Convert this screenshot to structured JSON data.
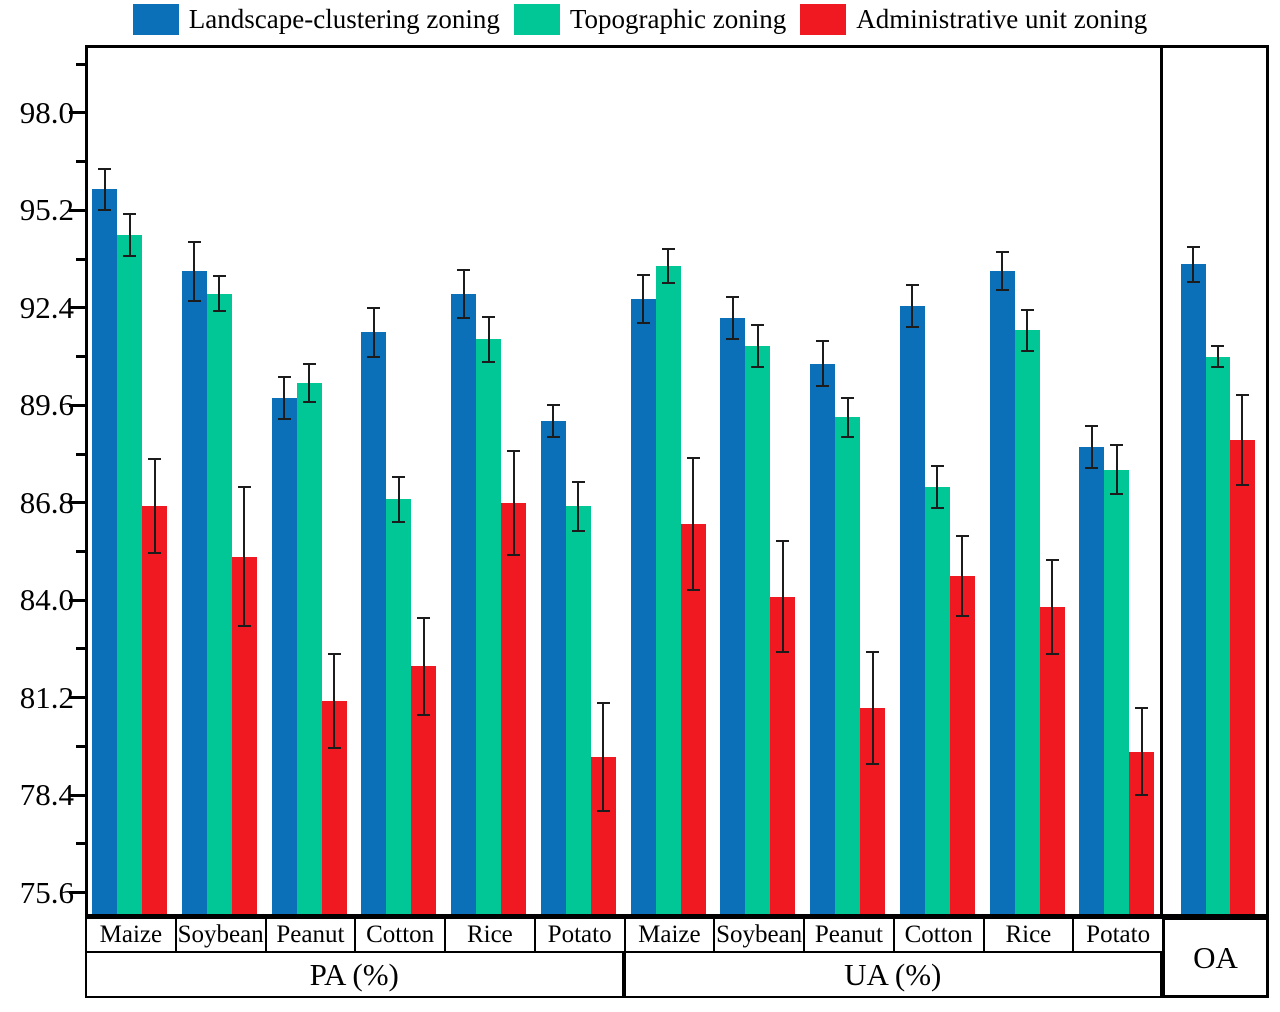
{
  "legend": {
    "items": [
      "Landscape-clustering zoning",
      "Topographic zoning",
      "Administrative unit zoning"
    ]
  },
  "chart_data": {
    "type": "bar",
    "title": "",
    "xlabel": "",
    "ylabel": "",
    "grid": false,
    "legend_position": "top",
    "y_axis": {
      "min": 74.9,
      "max": 99.95,
      "major_ticks": [
        98.0,
        95.2,
        92.4,
        89.6,
        86.8,
        84.0,
        81.2,
        78.4,
        75.6
      ],
      "minor_ticks": [
        99.4,
        96.6,
        93.8,
        91.0,
        88.2,
        85.4,
        82.6,
        79.8,
        77.0
      ]
    },
    "sections": [
      {
        "label": "PA (%)",
        "categories": [
          "Maize",
          "Soybean",
          "Peanut",
          "Cotton",
          "Rice",
          "Potato"
        ]
      },
      {
        "label": "UA (%)",
        "categories": [
          "Maize",
          "Soybean",
          "Peanut",
          "Cotton",
          "Rice",
          "Potato"
        ]
      },
      {
        "label": "OA"
      }
    ],
    "series": [
      {
        "name": "Landscape-clustering zoning",
        "color": "#0c70b8",
        "values": [
          95.8,
          93.45,
          89.8,
          91.7,
          92.8,
          89.15,
          92.65,
          92.1,
          90.8,
          92.45,
          93.45,
          88.4,
          93.65
        ],
        "errors": [
          0.6,
          0.85,
          0.6,
          0.7,
          0.7,
          0.45,
          0.7,
          0.6,
          0.65,
          0.6,
          0.55,
          0.6,
          0.5
        ]
      },
      {
        "name": "Topographic zoning",
        "color": "#00c795",
        "values": [
          94.5,
          92.8,
          90.25,
          86.9,
          91.5,
          86.7,
          93.6,
          91.3,
          89.25,
          87.25,
          91.75,
          87.75,
          91.0
        ],
        "errors": [
          0.6,
          0.5,
          0.55,
          0.65,
          0.65,
          0.7,
          0.5,
          0.6,
          0.55,
          0.6,
          0.6,
          0.7,
          0.3
        ]
      },
      {
        "name": "Administrative unit zoning",
        "color": "#f01821",
        "values": [
          86.7,
          85.25,
          81.1,
          82.1,
          86.8,
          79.5,
          86.2,
          84.1,
          80.9,
          84.7,
          83.8,
          79.65,
          88.6
        ],
        "errors": [
          1.35,
          2.0,
          1.35,
          1.4,
          1.5,
          1.55,
          1.9,
          1.6,
          1.6,
          1.15,
          1.35,
          1.25,
          1.3
        ]
      }
    ]
  }
}
